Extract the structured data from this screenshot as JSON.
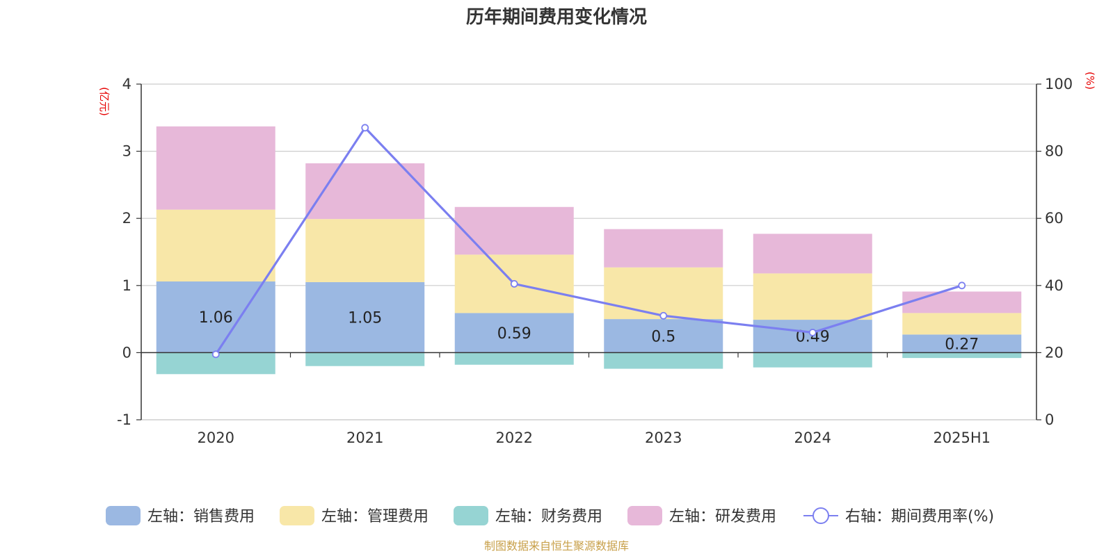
{
  "chart_data": {
    "type": "bar",
    "title": "历年期间费用变化情况",
    "categories": [
      "2020",
      "2021",
      "2022",
      "2023",
      "2024",
      "2025H1"
    ],
    "left_axis": {
      "unit": "(亿元)",
      "ylim": [
        -1,
        4
      ],
      "ticks": [
        "-1",
        "0",
        "1",
        "2",
        "3",
        "4"
      ]
    },
    "right_axis": {
      "unit": "(%)",
      "ylim": [
        0,
        100
      ],
      "ticks": [
        "0",
        "20",
        "40",
        "60",
        "80",
        "100"
      ]
    },
    "series": [
      {
        "name": "左轴：销售费用",
        "axis": "left",
        "type": "bar",
        "stack": "expense",
        "color": "#9bb8e2",
        "values": [
          1.06,
          1.05,
          0.59,
          0.5,
          0.49,
          0.27
        ],
        "labels": [
          "1.06",
          "1.05",
          "0.59",
          "0.5",
          "0.49",
          "0.27"
        ]
      },
      {
        "name": "左轴：管理费用",
        "axis": "left",
        "type": "bar",
        "stack": "expense",
        "color": "#f8e7a8",
        "values": [
          1.07,
          0.94,
          0.87,
          0.77,
          0.69,
          0.32
        ]
      },
      {
        "name": "左轴：财务费用",
        "axis": "left",
        "type": "bar",
        "stack": "expense",
        "color": "#96d4d3",
        "values": [
          -0.32,
          -0.2,
          -0.18,
          -0.24,
          -0.22,
          -0.08
        ]
      },
      {
        "name": "左轴：研发费用",
        "axis": "left",
        "type": "bar",
        "stack": "expense",
        "color": "#e7b8d9",
        "values": [
          1.24,
          0.83,
          0.71,
          0.57,
          0.59,
          0.32
        ]
      },
      {
        "name": "右轴：期间费用率(%)",
        "axis": "right",
        "type": "line",
        "color": "#7b7ff0",
        "values": [
          19.5,
          87,
          40.5,
          31,
          26,
          40
        ]
      }
    ],
    "grid": true,
    "legend_position": "bottom",
    "source": "制图数据来自恒生聚源数据库"
  }
}
